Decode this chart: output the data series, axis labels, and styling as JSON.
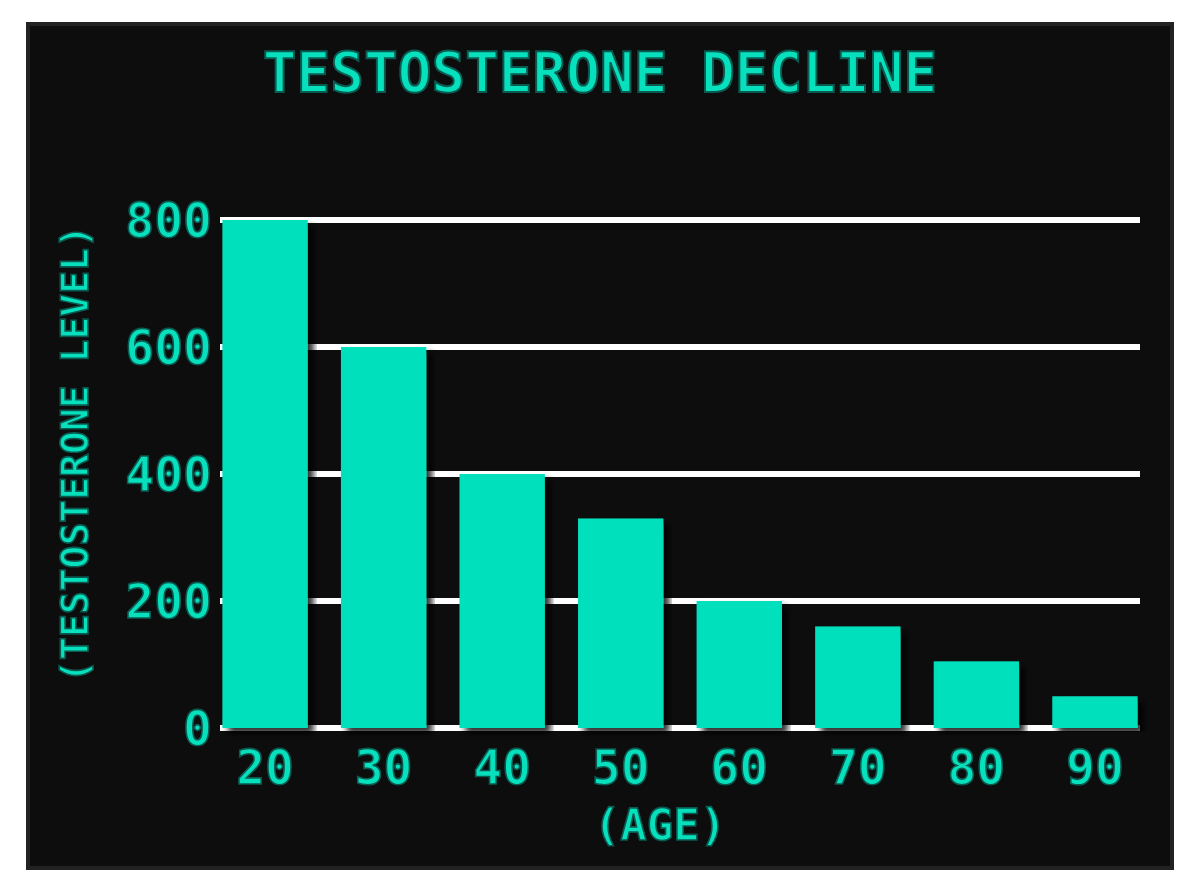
{
  "chart_data": {
    "type": "bar",
    "title": "TESTOSTERONE DECLINE",
    "xlabel": "(AGE)",
    "ylabel": "(TESTOSTERONE LEVEL)",
    "categories": [
      "20",
      "30",
      "40",
      "50",
      "60",
      "70",
      "80",
      "90"
    ],
    "values": [
      800,
      600,
      400,
      330,
      200,
      160,
      105,
      50
    ],
    "color": "#06e0bd",
    "ylim": [
      0,
      800
    ],
    "yticks": [
      0,
      200,
      400,
      600,
      800
    ],
    "grid": "y"
  }
}
